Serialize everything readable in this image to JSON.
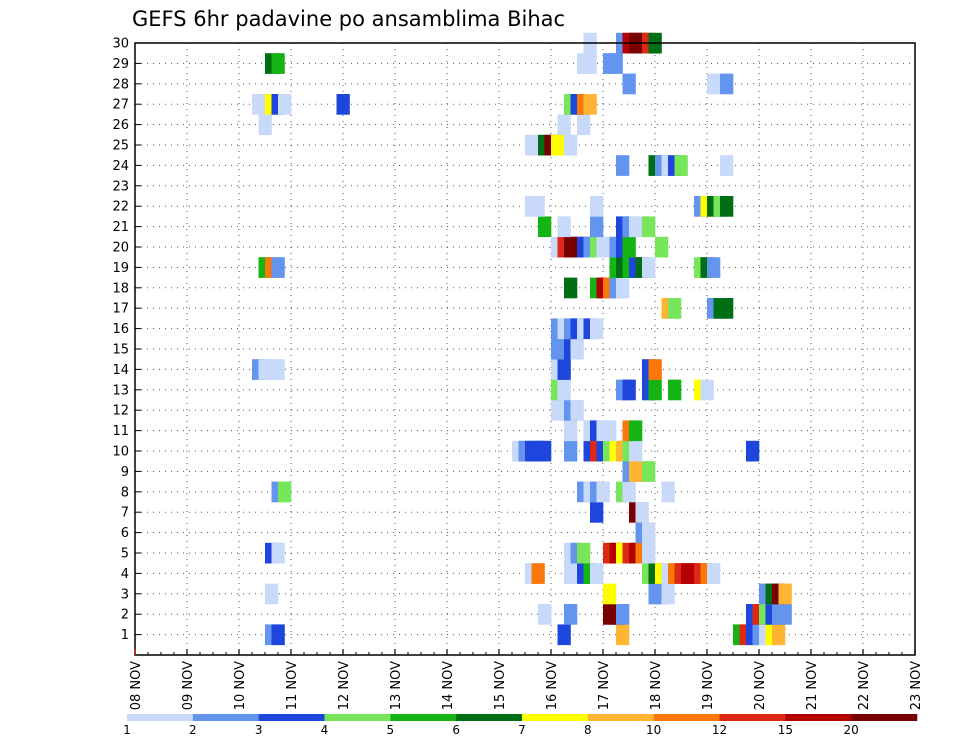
{
  "chart_data": {
    "type": "heatmap",
    "title": "GEFS 6hr padavine po ansamblima Bihac",
    "xlabel": "",
    "ylabel": "",
    "x_tick_labels": [
      "08 NOV",
      "09 NOV",
      "10 NOV",
      "11 NOV",
      "12 NOV",
      "13 NOV",
      "14 NOV",
      "15 NOV",
      "16 NOV",
      "17 NOV",
      "18 NOV",
      "19 NOV",
      "20 NOV",
      "21 NOV",
      "22 NOV",
      "23 NOV"
    ],
    "x_range_steps": [
      0,
      60
    ],
    "steps_per_day": 4,
    "y_tick_labels": [
      "1",
      "2",
      "3",
      "4",
      "5",
      "6",
      "7",
      "8",
      "9",
      "10",
      "11",
      "12",
      "13",
      "14",
      "15",
      "16",
      "17",
      "18",
      "19",
      "20",
      "21",
      "22",
      "23",
      "24",
      "25",
      "26",
      "27",
      "28",
      "29",
      "30"
    ],
    "y_range_members": [
      0,
      30
    ],
    "colorbar": {
      "colors": [
        "#c8d9fa",
        "#6495ee",
        "#1e46dc",
        "#78e65a",
        "#14b414",
        "#006e14",
        "#ffff00",
        "#ffb432",
        "#fa780a",
        "#dc2814",
        "#b40000",
        "#780000"
      ],
      "labels": [
        "1",
        "2",
        "3",
        "4",
        "5",
        "6",
        "7",
        "8",
        "10",
        "12",
        "15",
        "20"
      ]
    },
    "cells": [
      {
        "m": 1,
        "t": 10,
        "c": 2
      },
      {
        "m": 1,
        "t": 10.5,
        "c": 3
      },
      {
        "m": 1,
        "t": 32.5,
        "c": 3
      },
      {
        "m": 1,
        "t": 37,
        "c": 8
      },
      {
        "m": 1,
        "t": 46,
        "c": 5
      },
      {
        "m": 1,
        "t": 46.5,
        "c": 10
      },
      {
        "m": 1,
        "t": 47,
        "c": 3
      },
      {
        "m": 1,
        "t": 47.5,
        "c": 2
      },
      {
        "m": 1,
        "t": 48,
        "c": 1
      },
      {
        "m": 1,
        "t": 48.5,
        "c": 7
      },
      {
        "m": 1,
        "t": 49,
        "c": 8
      },
      {
        "m": 2,
        "t": 31,
        "c": 1
      },
      {
        "m": 2,
        "t": 33,
        "c": 2
      },
      {
        "m": 2,
        "t": 36,
        "c": 12
      },
      {
        "m": 2,
        "t": 36.5,
        "c": 12
      },
      {
        "m": 2,
        "t": 37,
        "c": 2
      },
      {
        "m": 2,
        "t": 47,
        "c": 3
      },
      {
        "m": 2,
        "t": 47.5,
        "c": 10
      },
      {
        "m": 2,
        "t": 48,
        "c": 4
      },
      {
        "m": 2,
        "t": 48.5,
        "c": 3
      },
      {
        "m": 2,
        "t": 49,
        "c": 2
      },
      {
        "m": 2,
        "t": 49.5,
        "c": 2
      },
      {
        "m": 3,
        "t": 10,
        "c": 1
      },
      {
        "m": 3,
        "t": 36,
        "c": 7
      },
      {
        "m": 3,
        "t": 39.5,
        "c": 2
      },
      {
        "m": 3,
        "t": 40,
        "c": 2
      },
      {
        "m": 3,
        "t": 40.5,
        "c": 1
      },
      {
        "m": 3,
        "t": 48,
        "c": 2
      },
      {
        "m": 3,
        "t": 48.5,
        "c": 6
      },
      {
        "m": 3,
        "t": 49,
        "c": 12
      },
      {
        "m": 3,
        "t": 49.5,
        "c": 8
      },
      {
        "m": 4,
        "t": 30,
        "c": 1
      },
      {
        "m": 4,
        "t": 30.5,
        "c": 9
      },
      {
        "m": 4,
        "t": 33,
        "c": 1
      },
      {
        "m": 4,
        "t": 33.5,
        "c": 1
      },
      {
        "m": 4,
        "t": 34,
        "c": 3
      },
      {
        "m": 4,
        "t": 34.5,
        "c": 5
      },
      {
        "m": 4,
        "t": 35,
        "c": 1
      },
      {
        "m": 4,
        "t": 39,
        "c": 4
      },
      {
        "m": 4,
        "t": 39.5,
        "c": 6
      },
      {
        "m": 4,
        "t": 40,
        "c": 7
      },
      {
        "m": 4,
        "t": 40.5,
        "c": 1
      },
      {
        "m": 4,
        "t": 41,
        "c": 9
      },
      {
        "m": 4,
        "t": 41.5,
        "c": 10
      },
      {
        "m": 4,
        "t": 42,
        "c": 11
      },
      {
        "m": 4,
        "t": 42.5,
        "c": 11
      },
      {
        "m": 4,
        "t": 43,
        "c": 10
      },
      {
        "m": 4,
        "t": 43.5,
        "c": 9
      },
      {
        "m": 4,
        "t": 44,
        "c": 1
      },
      {
        "m": 5,
        "t": 10,
        "c": 3
      },
      {
        "m": 5,
        "t": 10.5,
        "c": 1
      },
      {
        "m": 5,
        "t": 33,
        "c": 1
      },
      {
        "m": 5,
        "t": 33.5,
        "c": 2
      },
      {
        "m": 5,
        "t": 34,
        "c": 4
      },
      {
        "m": 5,
        "t": 36,
        "c": 10
      },
      {
        "m": 5,
        "t": 36.5,
        "c": 11
      },
      {
        "m": 5,
        "t": 37,
        "c": 7
      },
      {
        "m": 5,
        "t": 37.5,
        "c": 10
      },
      {
        "m": 5,
        "t": 38,
        "c": 11
      },
      {
        "m": 5,
        "t": 38.5,
        "c": 9
      },
      {
        "m": 5,
        "t": 39,
        "c": 1
      },
      {
        "m": 6,
        "t": 38.5,
        "c": 2
      },
      {
        "m": 6,
        "t": 39,
        "c": 1
      },
      {
        "m": 7,
        "t": 35,
        "c": 3
      },
      {
        "m": 7,
        "t": 38,
        "c": 12
      },
      {
        "m": 7,
        "t": 38.5,
        "c": 1
      },
      {
        "m": 8,
        "t": 10.5,
        "c": 2
      },
      {
        "m": 8,
        "t": 11,
        "c": 4
      },
      {
        "m": 8,
        "t": 34,
        "c": 2
      },
      {
        "m": 8,
        "t": 34.5,
        "c": 1
      },
      {
        "m": 8,
        "t": 35,
        "c": 2
      },
      {
        "m": 8,
        "t": 35.5,
        "c": 1
      },
      {
        "m": 8,
        "t": 37,
        "c": 4
      },
      {
        "m": 8,
        "t": 37.5,
        "c": 1
      },
      {
        "m": 8,
        "t": 40.5,
        "c": 1
      },
      {
        "m": 9,
        "t": 37.5,
        "c": 2
      },
      {
        "m": 9,
        "t": 38,
        "c": 8
      },
      {
        "m": 9,
        "t": 38.5,
        "c": 8
      },
      {
        "m": 9,
        "t": 39,
        "c": 4
      },
      {
        "m": 10,
        "t": 29,
        "c": 1
      },
      {
        "m": 10,
        "t": 29.5,
        "c": 2
      },
      {
        "m": 10,
        "t": 30,
        "c": 3
      },
      {
        "m": 10,
        "t": 30.5,
        "c": 3
      },
      {
        "m": 10,
        "t": 31,
        "c": 3
      },
      {
        "m": 10,
        "t": 33,
        "c": 2
      },
      {
        "m": 10,
        "t": 34.5,
        "c": 3
      },
      {
        "m": 10,
        "t": 35,
        "c": 10
      },
      {
        "m": 10,
        "t": 35.5,
        "c": 3
      },
      {
        "m": 10,
        "t": 36,
        "c": 4
      },
      {
        "m": 10,
        "t": 36.5,
        "c": 7
      },
      {
        "m": 10,
        "t": 37,
        "c": 8
      },
      {
        "m": 10,
        "t": 37.5,
        "c": 4
      },
      {
        "m": 10,
        "t": 38,
        "c": 1
      },
      {
        "m": 10,
        "t": 47,
        "c": 3
      },
      {
        "m": 11,
        "t": 33,
        "c": 1
      },
      {
        "m": 11,
        "t": 34.5,
        "c": 1
      },
      {
        "m": 11,
        "t": 35,
        "c": 3
      },
      {
        "m": 11,
        "t": 35.5,
        "c": 1
      },
      {
        "m": 11,
        "t": 36,
        "c": 1
      },
      {
        "m": 11,
        "t": 37.5,
        "c": 9
      },
      {
        "m": 11,
        "t": 38,
        "c": 5
      },
      {
        "m": 12,
        "t": 32,
        "c": 1
      },
      {
        "m": 12,
        "t": 32.5,
        "c": 1
      },
      {
        "m": 12,
        "t": 33,
        "c": 2
      },
      {
        "m": 12,
        "t": 33.5,
        "c": 1
      },
      {
        "m": 13,
        "t": 32,
        "c": 4
      },
      {
        "m": 13,
        "t": 32.5,
        "c": 1
      },
      {
        "m": 13,
        "t": 37,
        "c": 2
      },
      {
        "m": 13,
        "t": 37.5,
        "c": 3
      },
      {
        "m": 13,
        "t": 39,
        "c": 3
      },
      {
        "m": 13,
        "t": 39.5,
        "c": 5
      },
      {
        "m": 13,
        "t": 41,
        "c": 5
      },
      {
        "m": 13,
        "t": 43,
        "c": 7
      },
      {
        "m": 13,
        "t": 43.5,
        "c": 1
      },
      {
        "m": 14,
        "t": 9,
        "c": 2
      },
      {
        "m": 14,
        "t": 9.5,
        "c": 1
      },
      {
        "m": 14,
        "t": 10,
        "c": 1
      },
      {
        "m": 14,
        "t": 10.5,
        "c": 1
      },
      {
        "m": 14,
        "t": 32,
        "c": 1
      },
      {
        "m": 14,
        "t": 32.5,
        "c": 3
      },
      {
        "m": 14,
        "t": 39,
        "c": 3
      },
      {
        "m": 14,
        "t": 39.5,
        "c": 9
      },
      {
        "m": 15,
        "t": 32,
        "c": 2
      },
      {
        "m": 15,
        "t": 32.5,
        "c": 2
      },
      {
        "m": 15,
        "t": 33,
        "c": 3
      },
      {
        "m": 15,
        "t": 33.5,
        "c": 1
      },
      {
        "m": 16,
        "t": 32,
        "c": 2
      },
      {
        "m": 16,
        "t": 32.5,
        "c": 1
      },
      {
        "m": 16,
        "t": 33,
        "c": 2
      },
      {
        "m": 16,
        "t": 33.5,
        "c": 3
      },
      {
        "m": 16,
        "t": 34,
        "c": 1
      },
      {
        "m": 16,
        "t": 34.5,
        "c": 3
      },
      {
        "m": 16,
        "t": 35,
        "c": 1
      },
      {
        "m": 17,
        "t": 40.5,
        "c": 8
      },
      {
        "m": 17,
        "t": 41,
        "c": 4
      },
      {
        "m": 17,
        "t": 44,
        "c": 2
      },
      {
        "m": 17,
        "t": 44.5,
        "c": 6
      },
      {
        "m": 17,
        "t": 45,
        "c": 6
      },
      {
        "m": 18,
        "t": 33,
        "c": 6
      },
      {
        "m": 18,
        "t": 35,
        "c": 5
      },
      {
        "m": 18,
        "t": 35.5,
        "c": 11
      },
      {
        "m": 18,
        "t": 36,
        "c": 9
      },
      {
        "m": 18,
        "t": 36.5,
        "c": 2
      },
      {
        "m": 18,
        "t": 37,
        "c": 1
      },
      {
        "m": 19,
        "t": 9.5,
        "c": 5
      },
      {
        "m": 19,
        "t": 10,
        "c": 9
      },
      {
        "m": 19,
        "t": 10.5,
        "c": 2
      },
      {
        "m": 19,
        "t": 36.5,
        "c": 5
      },
      {
        "m": 19,
        "t": 37,
        "c": 6
      },
      {
        "m": 19,
        "t": 37.5,
        "c": 5
      },
      {
        "m": 19,
        "t": 38,
        "c": 3
      },
      {
        "m": 19,
        "t": 38.5,
        "c": 6
      },
      {
        "m": 19,
        "t": 39,
        "c": 1
      },
      {
        "m": 19,
        "t": 43,
        "c": 4
      },
      {
        "m": 19,
        "t": 43.5,
        "c": 6
      },
      {
        "m": 19,
        "t": 44,
        "c": 2
      },
      {
        "m": 20,
        "t": 32,
        "c": 1
      },
      {
        "m": 20,
        "t": 32.5,
        "c": 10
      },
      {
        "m": 20,
        "t": 33,
        "c": 12
      },
      {
        "m": 20,
        "t": 33.5,
        "c": 12
      },
      {
        "m": 20,
        "t": 34,
        "c": 3
      },
      {
        "m": 20,
        "t": 34.5,
        "c": 2
      },
      {
        "m": 20,
        "t": 35,
        "c": 4
      },
      {
        "m": 20,
        "t": 35.5,
        "c": 1
      },
      {
        "m": 20,
        "t": 36,
        "c": 1
      },
      {
        "m": 20,
        "t": 36.5,
        "c": 2
      },
      {
        "m": 20,
        "t": 37,
        "c": 3
      },
      {
        "m": 20,
        "t": 37.5,
        "c": 5
      },
      {
        "m": 20,
        "t": 40,
        "c": 4
      },
      {
        "m": 21,
        "t": 31,
        "c": 5
      },
      {
        "m": 21,
        "t": 32.5,
        "c": 1
      },
      {
        "m": 21,
        "t": 35,
        "c": 2
      },
      {
        "m": 21,
        "t": 37,
        "c": 3
      },
      {
        "m": 21,
        "t": 37.5,
        "c": 2
      },
      {
        "m": 21,
        "t": 38,
        "c": 1
      },
      {
        "m": 21,
        "t": 38.5,
        "c": 1
      },
      {
        "m": 21,
        "t": 39,
        "c": 4
      },
      {
        "m": 22,
        "t": 30,
        "c": 1
      },
      {
        "m": 22,
        "t": 30.5,
        "c": 1
      },
      {
        "m": 22,
        "t": 35,
        "c": 1
      },
      {
        "m": 22,
        "t": 43,
        "c": 2
      },
      {
        "m": 22,
        "t": 43.5,
        "c": 7
      },
      {
        "m": 22,
        "t": 44,
        "c": 6
      },
      {
        "m": 22,
        "t": 44.5,
        "c": 4
      },
      {
        "m": 22,
        "t": 45,
        "c": 6
      },
      {
        "m": 24,
        "t": 37,
        "c": 2
      },
      {
        "m": 24,
        "t": 39.5,
        "c": 6
      },
      {
        "m": 24,
        "t": 40,
        "c": 2
      },
      {
        "m": 24,
        "t": 40.5,
        "c": 1
      },
      {
        "m": 24,
        "t": 41,
        "c": 3
      },
      {
        "m": 24,
        "t": 41.5,
        "c": 4
      },
      {
        "m": 24,
        "t": 45,
        "c": 1
      },
      {
        "m": 25,
        "t": 30,
        "c": 1
      },
      {
        "m": 25,
        "t": 31,
        "c": 6
      },
      {
        "m": 25,
        "t": 31.5,
        "c": 12
      },
      {
        "m": 25,
        "t": 32,
        "c": 7
      },
      {
        "m": 25,
        "t": 33,
        "c": 1
      },
      {
        "m": 26,
        "t": 9.5,
        "c": 1
      },
      {
        "m": 26,
        "t": 32.5,
        "c": 1
      },
      {
        "m": 26,
        "t": 34,
        "c": 1
      },
      {
        "m": 27,
        "t": 9,
        "c": 1
      },
      {
        "m": 27,
        "t": 9.5,
        "c": 1
      },
      {
        "m": 27,
        "t": 10,
        "c": 7
      },
      {
        "m": 27,
        "t": 10.5,
        "c": 3
      },
      {
        "m": 27,
        "t": 11,
        "c": 1
      },
      {
        "m": 27,
        "t": 15.5,
        "c": 3
      },
      {
        "m": 27,
        "t": 33,
        "c": 4
      },
      {
        "m": 27,
        "t": 33.5,
        "c": 3
      },
      {
        "m": 27,
        "t": 34,
        "c": 9
      },
      {
        "m": 27,
        "t": 34.5,
        "c": 8
      },
      {
        "m": 28,
        "t": 37.5,
        "c": 2
      },
      {
        "m": 28,
        "t": 44,
        "c": 1
      },
      {
        "m": 28,
        "t": 45,
        "c": 2
      },
      {
        "m": 29,
        "t": 10,
        "c": 6
      },
      {
        "m": 29,
        "t": 10.5,
        "c": 5
      },
      {
        "m": 29,
        "t": 34,
        "c": 1
      },
      {
        "m": 29,
        "t": 34.5,
        "c": 1
      },
      {
        "m": 29,
        "t": 36,
        "c": 2
      },
      {
        "m": 29,
        "t": 36.5,
        "c": 2
      },
      {
        "m": 30,
        "t": 34.5,
        "c": 1
      },
      {
        "m": 30,
        "t": 37,
        "c": 2
      },
      {
        "m": 30,
        "t": 37.5,
        "c": 11
      },
      {
        "m": 30,
        "t": 38,
        "c": 12
      },
      {
        "m": 30,
        "t": 38.5,
        "c": 12
      },
      {
        "m": 30,
        "t": 39,
        "c": 10
      },
      {
        "m": 30,
        "t": 39.5,
        "c": 6
      }
    ]
  }
}
